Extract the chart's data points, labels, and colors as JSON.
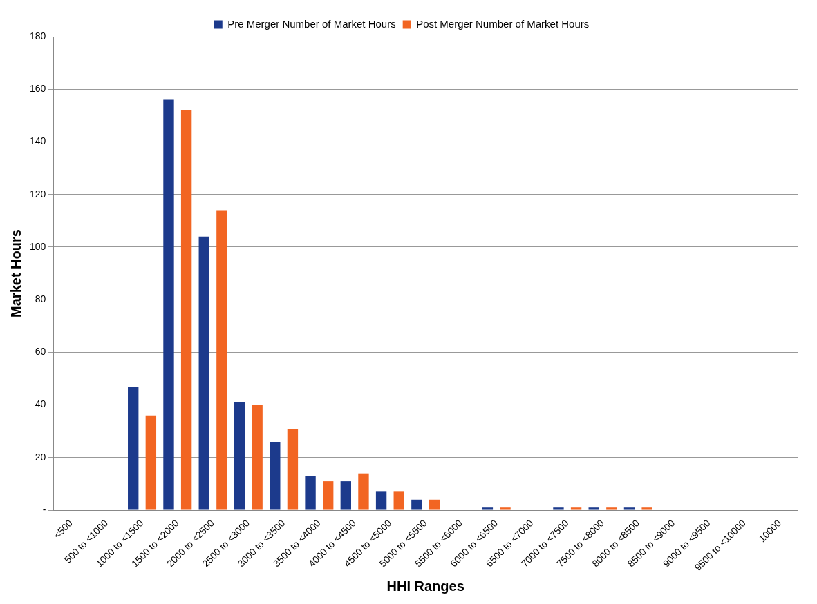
{
  "chart_data": {
    "type": "bar",
    "xlabel": "HHI Ranges",
    "ylabel": "Market Hours",
    "categories": [
      "<500",
      "500 to <1000",
      "1000 to <1500",
      "1500 to <2000",
      "2000 to <2500",
      "2500 to <3000",
      "3000 to <3500",
      "3500 to <4000",
      "4000 to <4500",
      "4500 to <5000",
      "5000 to <5500",
      "5500 to <6000",
      "6000 to <6500",
      "6500 to <7000",
      "7000 to <7500",
      "7500 to <8000",
      "8000 to <8500",
      "8500 to <9000",
      "9000 to <9500",
      "9500 to <10000",
      "10000"
    ],
    "series": [
      {
        "name": "Pre Merger Number of Market Hours",
        "color": "#1c3a8c",
        "values": [
          0,
          0,
          47,
          156,
          104,
          41,
          26,
          13,
          11,
          7,
          4,
          0,
          1,
          0,
          1,
          1,
          1,
          0,
          0,
          0,
          0
        ]
      },
      {
        "name": "Post Merger Number of Market Hours",
        "color": "#f26522",
        "values": [
          0,
          0,
          36,
          152,
          114,
          40,
          31,
          11,
          14,
          7,
          4,
          0,
          1,
          0,
          1,
          1,
          1,
          0,
          0,
          0,
          0
        ]
      }
    ],
    "ylim": [
      0,
      180
    ],
    "yticks": [
      {
        "value": 0,
        "label": "-"
      },
      20,
      40,
      60,
      80,
      100,
      120,
      140,
      160,
      180
    ],
    "grid": "y",
    "legend": "top"
  }
}
